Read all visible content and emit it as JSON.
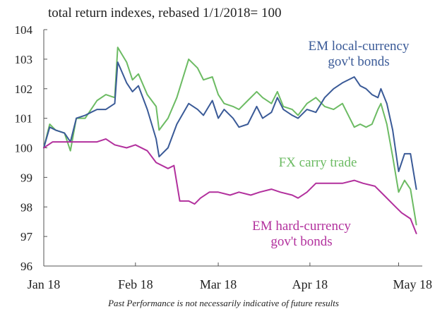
{
  "chart_data": {
    "type": "line",
    "title": "total return indexes, rebased 1/1/2018= 100",
    "xlabel": "",
    "ylabel": "",
    "ylim": [
      96,
      104
    ],
    "yticks": [
      "96",
      "97",
      "98",
      "99",
      "100",
      "101",
      "102",
      "103",
      "104"
    ],
    "xlim": [
      "2018-01-01",
      "2018-05-09"
    ],
    "xticks": [
      {
        "date": "2018-01-01",
        "label": "Jan 18"
      },
      {
        "date": "2018-02-01",
        "label": "Feb 18"
      },
      {
        "date": "2018-03-01",
        "label": "Mar 18"
      },
      {
        "date": "2018-04-01",
        "label": "Apr 18"
      },
      {
        "date": "2018-05-01",
        "label": "May 18"
      }
    ],
    "grid": false,
    "series": [
      {
        "name": "EM local-currency gov't bonds",
        "label_lines": [
          "EM local-currency",
          "gov't bonds"
        ],
        "color": "#3a5a97",
        "points": [
          [
            "2018-01-01",
            100.0
          ],
          [
            "2018-01-03",
            100.7
          ],
          [
            "2018-01-05",
            100.6
          ],
          [
            "2018-01-08",
            100.5
          ],
          [
            "2018-01-10",
            100.2
          ],
          [
            "2018-01-12",
            101.0
          ],
          [
            "2018-01-15",
            101.1
          ],
          [
            "2018-01-17",
            101.2
          ],
          [
            "2018-01-19",
            101.3
          ],
          [
            "2018-01-22",
            101.3
          ],
          [
            "2018-01-25",
            101.5
          ],
          [
            "2018-01-26",
            102.9
          ],
          [
            "2018-01-29",
            102.2
          ],
          [
            "2018-01-31",
            101.9
          ],
          [
            "2018-02-02",
            102.1
          ],
          [
            "2018-02-05",
            101.3
          ],
          [
            "2018-02-08",
            100.3
          ],
          [
            "2018-02-09",
            99.7
          ],
          [
            "2018-02-12",
            100.0
          ],
          [
            "2018-02-15",
            100.8
          ],
          [
            "2018-02-19",
            101.5
          ],
          [
            "2018-02-22",
            101.3
          ],
          [
            "2018-02-24",
            101.1
          ],
          [
            "2018-02-27",
            101.6
          ],
          [
            "2018-03-01",
            101.0
          ],
          [
            "2018-03-03",
            101.3
          ],
          [
            "2018-03-06",
            101.0
          ],
          [
            "2018-03-08",
            100.7
          ],
          [
            "2018-03-11",
            100.8
          ],
          [
            "2018-03-14",
            101.4
          ],
          [
            "2018-03-16",
            101.0
          ],
          [
            "2018-03-19",
            101.2
          ],
          [
            "2018-03-21",
            101.7
          ],
          [
            "2018-03-23",
            101.3
          ],
          [
            "2018-03-26",
            101.1
          ],
          [
            "2018-03-28",
            101.0
          ],
          [
            "2018-03-31",
            101.3
          ],
          [
            "2018-04-03",
            101.2
          ],
          [
            "2018-04-06",
            101.7
          ],
          [
            "2018-04-09",
            102.0
          ],
          [
            "2018-04-12",
            102.2
          ],
          [
            "2018-04-16",
            102.4
          ],
          [
            "2018-04-18",
            102.1
          ],
          [
            "2018-04-20",
            102.0
          ],
          [
            "2018-04-22",
            101.8
          ],
          [
            "2018-04-24",
            101.7
          ],
          [
            "2018-04-25",
            102.0
          ],
          [
            "2018-04-27",
            101.5
          ],
          [
            "2018-04-29",
            100.6
          ],
          [
            "2018-05-01",
            99.2
          ],
          [
            "2018-05-03",
            99.8
          ],
          [
            "2018-05-05",
            99.8
          ],
          [
            "2018-05-07",
            98.6
          ]
        ]
      },
      {
        "name": "FX carry trade",
        "label_lines": [
          "FX carry trade"
        ],
        "color": "#6cbb63",
        "points": [
          [
            "2018-01-01",
            100.0
          ],
          [
            "2018-01-03",
            100.8
          ],
          [
            "2018-01-05",
            100.6
          ],
          [
            "2018-01-08",
            100.5
          ],
          [
            "2018-01-10",
            99.9
          ],
          [
            "2018-01-12",
            101.0
          ],
          [
            "2018-01-15",
            101.0
          ],
          [
            "2018-01-17",
            101.3
          ],
          [
            "2018-01-19",
            101.6
          ],
          [
            "2018-01-22",
            101.8
          ],
          [
            "2018-01-25",
            101.7
          ],
          [
            "2018-01-26",
            103.4
          ],
          [
            "2018-01-29",
            102.9
          ],
          [
            "2018-01-31",
            102.3
          ],
          [
            "2018-02-02",
            102.5
          ],
          [
            "2018-02-05",
            101.8
          ],
          [
            "2018-02-08",
            101.4
          ],
          [
            "2018-02-09",
            100.6
          ],
          [
            "2018-02-12",
            101.0
          ],
          [
            "2018-02-15",
            101.7
          ],
          [
            "2018-02-19",
            103.0
          ],
          [
            "2018-02-22",
            102.7
          ],
          [
            "2018-02-24",
            102.3
          ],
          [
            "2018-02-27",
            102.4
          ],
          [
            "2018-03-01",
            101.8
          ],
          [
            "2018-03-03",
            101.5
          ],
          [
            "2018-03-06",
            101.4
          ],
          [
            "2018-03-08",
            101.3
          ],
          [
            "2018-03-11",
            101.6
          ],
          [
            "2018-03-14",
            101.9
          ],
          [
            "2018-03-16",
            101.7
          ],
          [
            "2018-03-19",
            101.5
          ],
          [
            "2018-03-21",
            101.9
          ],
          [
            "2018-03-23",
            101.4
          ],
          [
            "2018-03-26",
            101.3
          ],
          [
            "2018-03-28",
            101.1
          ],
          [
            "2018-03-31",
            101.5
          ],
          [
            "2018-04-03",
            101.7
          ],
          [
            "2018-04-06",
            101.4
          ],
          [
            "2018-04-09",
            101.3
          ],
          [
            "2018-04-12",
            101.5
          ],
          [
            "2018-04-16",
            100.7
          ],
          [
            "2018-04-18",
            100.8
          ],
          [
            "2018-04-20",
            100.7
          ],
          [
            "2018-04-22",
            100.8
          ],
          [
            "2018-04-24",
            101.3
          ],
          [
            "2018-04-25",
            101.5
          ],
          [
            "2018-04-27",
            100.8
          ],
          [
            "2018-04-29",
            99.7
          ],
          [
            "2018-05-01",
            98.5
          ],
          [
            "2018-05-03",
            98.9
          ],
          [
            "2018-05-05",
            98.6
          ],
          [
            "2018-05-07",
            97.4
          ]
        ]
      },
      {
        "name": "EM hard-currency gov't bonds",
        "label_lines": [
          "EM hard-currency",
          "gov't bonds"
        ],
        "color": "#b2309d",
        "points": [
          [
            "2018-01-01",
            100.0
          ],
          [
            "2018-01-04",
            100.2
          ],
          [
            "2018-01-08",
            100.2
          ],
          [
            "2018-01-11",
            100.2
          ],
          [
            "2018-01-15",
            100.2
          ],
          [
            "2018-01-19",
            100.2
          ],
          [
            "2018-01-22",
            100.3
          ],
          [
            "2018-01-25",
            100.1
          ],
          [
            "2018-01-29",
            100.0
          ],
          [
            "2018-02-01",
            100.1
          ],
          [
            "2018-02-05",
            99.9
          ],
          [
            "2018-02-08",
            99.5
          ],
          [
            "2018-02-12",
            99.3
          ],
          [
            "2018-02-14",
            99.4
          ],
          [
            "2018-02-16",
            98.2
          ],
          [
            "2018-02-19",
            98.2
          ],
          [
            "2018-02-21",
            98.1
          ],
          [
            "2018-02-23",
            98.3
          ],
          [
            "2018-02-26",
            98.5
          ],
          [
            "2018-03-01",
            98.5
          ],
          [
            "2018-03-05",
            98.4
          ],
          [
            "2018-03-08",
            98.5
          ],
          [
            "2018-03-12",
            98.4
          ],
          [
            "2018-03-15",
            98.5
          ],
          [
            "2018-03-19",
            98.6
          ],
          [
            "2018-03-22",
            98.5
          ],
          [
            "2018-03-26",
            98.4
          ],
          [
            "2018-03-28",
            98.3
          ],
          [
            "2018-03-31",
            98.5
          ],
          [
            "2018-04-03",
            98.8
          ],
          [
            "2018-04-08",
            98.8
          ],
          [
            "2018-04-12",
            98.8
          ],
          [
            "2018-04-16",
            98.9
          ],
          [
            "2018-04-19",
            98.8
          ],
          [
            "2018-04-23",
            98.7
          ],
          [
            "2018-04-26",
            98.4
          ],
          [
            "2018-04-30",
            98.0
          ],
          [
            "2018-05-02",
            97.8
          ],
          [
            "2018-05-05",
            97.6
          ],
          [
            "2018-05-07",
            97.1
          ]
        ]
      }
    ]
  },
  "footnote": "Past Performance is not necessarily indicative of future results"
}
